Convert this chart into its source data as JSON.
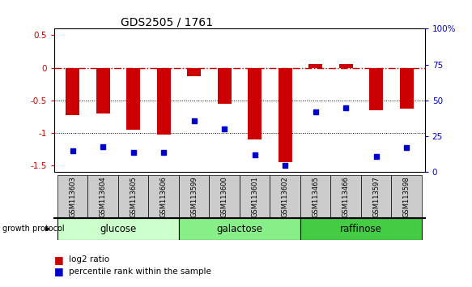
{
  "title": "GDS2505 / 1761",
  "samples": [
    "GSM113603",
    "GSM113604",
    "GSM113605",
    "GSM113606",
    "GSM113599",
    "GSM113600",
    "GSM113601",
    "GSM113602",
    "GSM113465",
    "GSM113466",
    "GSM113597",
    "GSM113598"
  ],
  "log2_ratio": [
    -0.72,
    -0.7,
    -0.95,
    -1.02,
    -0.13,
    -0.55,
    -1.1,
    -1.45,
    0.06,
    0.06,
    -0.65,
    -0.62
  ],
  "percentile_rank": [
    15,
    18,
    14,
    14,
    36,
    30,
    12,
    5,
    42,
    45,
    11,
    17
  ],
  "groups": [
    {
      "name": "glucose",
      "indices": [
        0,
        1,
        2,
        3
      ],
      "color": "#ccffcc"
    },
    {
      "name": "galactose",
      "indices": [
        4,
        5,
        6,
        7
      ],
      "color": "#88ee88"
    },
    {
      "name": "raffinose",
      "indices": [
        8,
        9,
        10,
        11
      ],
      "color": "#44cc44"
    }
  ],
  "bar_color": "#cc0000",
  "dot_color": "#0000cc",
  "ylim_left": [
    -1.6,
    0.6
  ],
  "ylim_right": [
    0,
    100
  ],
  "hline_zero_color": "#cc0000",
  "hline_dotted_color": "#000000",
  "background_plot": "#ffffff",
  "background_sample_labels": "#cccccc",
  "title_fontsize": 10,
  "tick_fontsize": 7.5,
  "label_fontsize": 8.5,
  "bar_width": 0.45
}
